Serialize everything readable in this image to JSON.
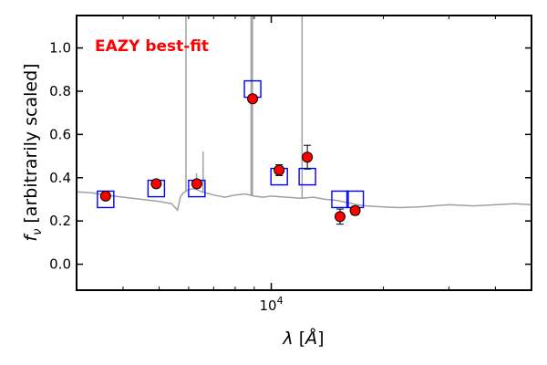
{
  "chart_data": {
    "type": "scatter",
    "annotation": "EAZY best-fit",
    "annotation_color": "#ff0000",
    "xlabel_italic": "λ",
    "xlabel_bracket_open": "[",
    "xlabel_unit": "Å",
    "xlabel_bracket_close": "]",
    "ylabel_italic": "f",
    "ylabel_subscript": "ν",
    "ylabel_text": "[arbitrarily scaled]",
    "x_scale": "log",
    "xlim": [
      3000,
      50000
    ],
    "ylim": [
      -0.12,
      1.15
    ],
    "x_major_ticks": [
      {
        "value": 10000,
        "base": "10",
        "exp": "4"
      }
    ],
    "y_ticks": [
      {
        "value": 0.0,
        "label": "0.0"
      },
      {
        "value": 0.2,
        "label": "0.2"
      },
      {
        "value": 0.4,
        "label": "0.4"
      },
      {
        "value": 0.6,
        "label": "0.6"
      },
      {
        "value": 0.8,
        "label": "0.8"
      },
      {
        "value": 1.0,
        "label": "1.0"
      }
    ],
    "grid": false,
    "colors": {
      "observed_marker": "#ff0000",
      "model_square": "#0000ff",
      "sed_line": "#a0a0a0"
    },
    "series": [
      {
        "kind": "observed_photometry",
        "marker": "filled-circle",
        "points": [
          {
            "x": 3590,
            "y": 0.315,
            "yerr": 0.015
          },
          {
            "x": 4910,
            "y": 0.372,
            "yerr": 0.012
          },
          {
            "x": 6310,
            "y": 0.372,
            "yerr": 0.012
          },
          {
            "x": 8910,
            "y": 0.765,
            "yerr": 0.018
          },
          {
            "x": 10500,
            "y": 0.435,
            "yerr": 0.025
          },
          {
            "x": 12500,
            "y": 0.495,
            "yerr": 0.055
          },
          {
            "x": 15300,
            "y": 0.22,
            "yerr": 0.035
          },
          {
            "x": 16800,
            "y": 0.248,
            "yerr": 0.02
          }
        ]
      },
      {
        "kind": "model_synthetic_photometry",
        "marker": "open-square",
        "points": [
          {
            "x": 3590,
            "y": 0.3
          },
          {
            "x": 4910,
            "y": 0.35
          },
          {
            "x": 6310,
            "y": 0.35
          },
          {
            "x": 8910,
            "y": 0.81
          },
          {
            "x": 10500,
            "y": 0.405
          },
          {
            "x": 12500,
            "y": 0.405
          },
          {
            "x": 15300,
            "y": 0.3
          },
          {
            "x": 16800,
            "y": 0.3
          }
        ]
      },
      {
        "kind": "best_fit_sed",
        "line": "solid",
        "x": [
          3000,
          3300,
          3600,
          4000,
          4500,
          5000,
          5400,
          5600,
          5700,
          5800,
          6000,
          6200,
          6500,
          7000,
          7500,
          8000,
          8500,
          9000,
          9500,
          10000,
          11000,
          12000,
          13000,
          14000,
          15000,
          16000,
          17000,
          18000,
          20000,
          22000,
          25000,
          30000,
          35000,
          40000,
          45000,
          50000
        ],
        "y": [
          0.335,
          0.33,
          0.32,
          0.31,
          0.3,
          0.29,
          0.28,
          0.25,
          0.31,
          0.33,
          0.345,
          0.35,
          0.335,
          0.32,
          0.31,
          0.32,
          0.325,
          0.315,
          0.31,
          0.315,
          0.31,
          0.305,
          0.31,
          0.3,
          0.295,
          0.285,
          0.275,
          0.27,
          0.265,
          0.262,
          0.265,
          0.275,
          0.27,
          0.275,
          0.28,
          0.275
        ],
        "emission_lines": [
          {
            "x": 5900,
            "y": 1.15
          },
          {
            "x": 6560,
            "y": 0.52
          },
          {
            "x": 6300,
            "y": 0.42
          },
          {
            "x": 8830,
            "y": 1.15
          },
          {
            "x": 8900,
            "y": 1.15
          },
          {
            "x": 12100,
            "y": 1.15
          }
        ]
      }
    ]
  }
}
